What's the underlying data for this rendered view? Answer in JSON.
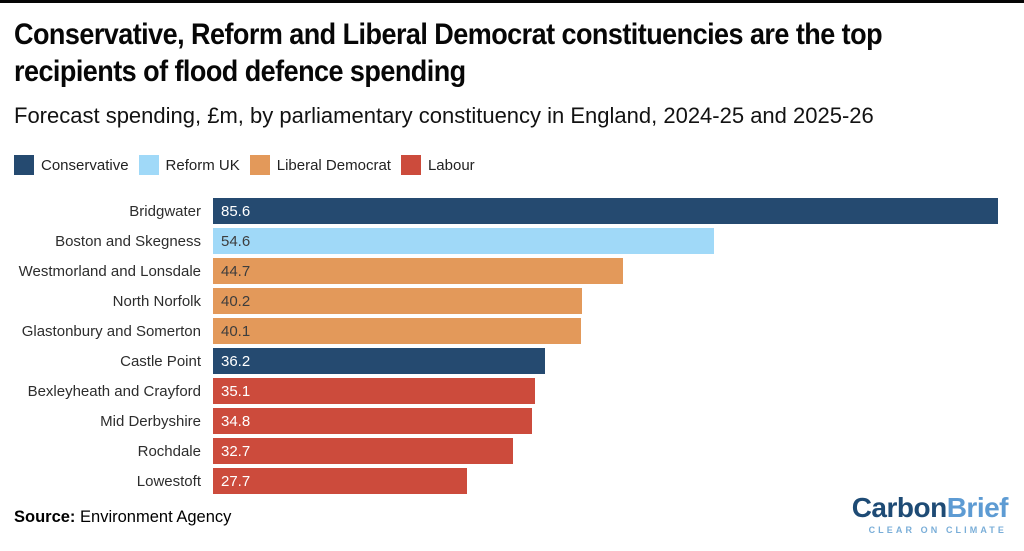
{
  "header": {
    "title_line1": "Conservative, Reform and Liberal Democrat constituencies are the top",
    "title_line2": "recipients of flood defence spending",
    "subtitle": "Forecast spending, £m, by parliamentary constituency in England, 2024-25 and 2025-26"
  },
  "legend": {
    "position": "top-left",
    "items": [
      {
        "label": "Conservative",
        "color": "#254a70"
      },
      {
        "label": "Reform UK",
        "color": "#a0d9f8"
      },
      {
        "label": "Liberal Democrat",
        "color": "#e3995a"
      },
      {
        "label": "Labour",
        "color": "#cc4b3c"
      }
    ]
  },
  "chart_data": {
    "type": "bar",
    "orientation": "horizontal",
    "title": "Conservative, Reform and Liberal Democrat constituencies are the top recipients of flood defence spending",
    "subtitle": "Forecast spending, £m, by parliamentary constituency in England, 2024-25 and 2025-26",
    "xlabel": "Forecast spending (£m)",
    "ylabel": "Parliamentary constituency",
    "xlim": [
      0,
      85.6
    ],
    "grid": false,
    "value_labels": "inside-left, one decimal",
    "categories": [
      "Bridgwater",
      "Boston and Skegness",
      "Westmorland and Lonsdale",
      "North Norfolk",
      "Glastonbury and Somerton",
      "Castle Point",
      "Bexleyheath and Crayford",
      "Mid Derbyshire",
      "Rochdale",
      "Lowestoft"
    ],
    "values": [
      85.6,
      54.6,
      44.7,
      40.2,
      40.1,
      36.2,
      35.1,
      34.8,
      32.7,
      27.7
    ],
    "rows": [
      {
        "label": "Bridgwater",
        "value": 85.6,
        "party": "Conservative"
      },
      {
        "label": "Boston and Skegness",
        "value": 54.6,
        "party": "Reform UK"
      },
      {
        "label": "Westmorland and Lonsdale",
        "value": 44.7,
        "party": "Liberal Democrat"
      },
      {
        "label": "North Norfolk",
        "value": 40.2,
        "party": "Liberal Democrat"
      },
      {
        "label": "Glastonbury and Somerton",
        "value": 40.1,
        "party": "Liberal Democrat"
      },
      {
        "label": "Castle Point",
        "value": 36.2,
        "party": "Conservative"
      },
      {
        "label": "Bexleyheath and Crayford",
        "value": 35.1,
        "party": "Labour"
      },
      {
        "label": "Mid Derbyshire",
        "value": 34.8,
        "party": "Labour"
      },
      {
        "label": "Rochdale",
        "value": 32.7,
        "party": "Labour"
      },
      {
        "label": "Lowestoft",
        "value": 27.7,
        "party": "Labour"
      }
    ],
    "party_colors": {
      "Conservative": {
        "bar": "#254a70",
        "text": "#ffffff"
      },
      "Reform UK": {
        "bar": "#a0d9f8",
        "text": "#3d3d3d"
      },
      "Liberal Democrat": {
        "bar": "#e3995a",
        "text": "#3d3d3d"
      },
      "Labour": {
        "bar": "#cc4b3c",
        "text": "#ffffff"
      }
    }
  },
  "footer": {
    "source_label": "Source:",
    "source_value": "Environment Agency",
    "logo": {
      "part1": "Carbon",
      "part1_color": "#1e4b75",
      "part2": "Brief",
      "part2_color": "#5d9bd3",
      "tagline": "CLEAR ON CLIMATE",
      "tagline_color": "#7aaed8"
    }
  }
}
